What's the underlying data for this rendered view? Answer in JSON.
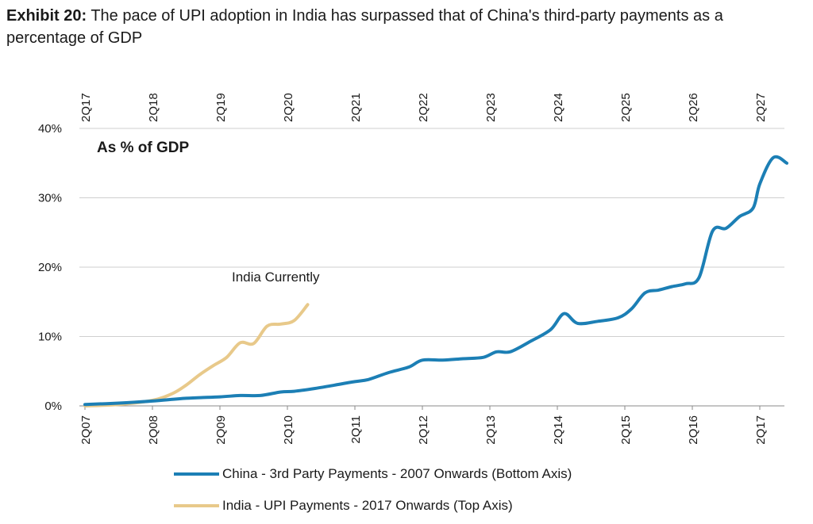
{
  "header": {
    "exhibit_label": "Exhibit 20:",
    "title": "The pace of UPI adoption in India has surpassed that of China's third-party payments as a percentage of GDP"
  },
  "chart_data": {
    "type": "line",
    "inner_title": "As % of GDP",
    "annotation": "India Currently",
    "y_ticks": [
      "0%",
      "10%",
      "20%",
      "30%",
      "40%"
    ],
    "ylim": [
      0,
      40
    ],
    "x_bottom_ticks": [
      "2Q07",
      "2Q08",
      "2Q09",
      "2Q10",
      "2Q11",
      "2Q12",
      "2Q13",
      "2Q14",
      "2Q15",
      "2Q16",
      "2Q17"
    ],
    "x_top_ticks": [
      "2Q17",
      "2Q18",
      "2Q19",
      "2Q20",
      "2Q21",
      "2Q22",
      "2Q23",
      "2Q24",
      "2Q25",
      "2Q26",
      "2Q27"
    ],
    "grid": true,
    "legend_position": "bottom",
    "series": [
      {
        "name": "China - 3rd Party Payments - 2007 Onwards (Bottom Axis)",
        "color": "#1c7fb5",
        "x": [
          0,
          0.5,
          1,
          1.5,
          2,
          2.3,
          2.6,
          2.9,
          3.1,
          3.4,
          3.7,
          4.0,
          4.2,
          4.5,
          4.8,
          5.0,
          5.3,
          5.6,
          5.9,
          6.1,
          6.3,
          6.6,
          6.9,
          7.1,
          7.3,
          7.6,
          7.9,
          8.1,
          8.3,
          8.5,
          8.7,
          8.9,
          9.1,
          9.3,
          9.5,
          9.7,
          9.9,
          10.0,
          10.2,
          10.4
        ],
        "y": [
          0.2,
          0.4,
          0.7,
          1.1,
          1.3,
          1.5,
          1.5,
          2.0,
          2.1,
          2.5,
          3.0,
          3.5,
          3.8,
          4.8,
          5.6,
          6.6,
          6.6,
          6.8,
          7.0,
          7.8,
          7.8,
          9.3,
          11.0,
          13.3,
          11.9,
          12.2,
          12.7,
          14.0,
          16.3,
          16.7,
          17.2,
          17.6,
          18.5,
          25.2,
          25.6,
          27.3,
          28.5,
          32.0,
          35.8,
          35.0
        ]
      },
      {
        "name": "India - UPI Payments - 2017 Onwards (Top Axis)",
        "color": "#e8c98a",
        "x": [
          0,
          0.5,
          1.0,
          1.3,
          1.5,
          1.7,
          1.9,
          2.1,
          2.3,
          2.5,
          2.7,
          2.9,
          3.1,
          3.3
        ],
        "y": [
          0,
          0.2,
          0.8,
          1.8,
          3.0,
          4.5,
          5.8,
          7.0,
          9.1,
          9.0,
          11.5,
          11.8,
          12.3,
          14.6
        ]
      }
    ]
  }
}
